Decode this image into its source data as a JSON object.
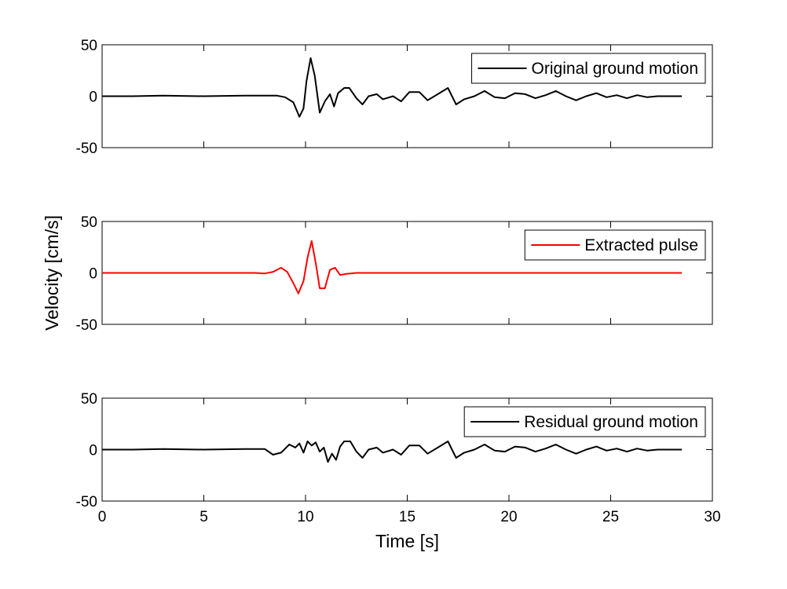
{
  "chart_data": {
    "type": "line",
    "xlabel": "Time [s]",
    "ylabel": "Velocity [cm/s]",
    "xlim": [
      0,
      30
    ],
    "xticks": [
      0,
      5,
      10,
      15,
      20,
      25,
      30
    ],
    "xtick_labels": [
      "0",
      "5",
      "10",
      "15",
      "20",
      "25",
      "30"
    ],
    "ylim": [
      -50,
      50
    ],
    "yticks": [
      -50,
      0,
      50
    ],
    "ytick_labels": [
      "-50",
      "0",
      "50"
    ],
    "grid": false,
    "legend_position": "top-right",
    "panels": [
      {
        "legend": "Original ground motion",
        "color": "#000000",
        "x": [
          0,
          1.5,
          3,
          5,
          7,
          8,
          8.6,
          9.0,
          9.4,
          9.7,
          9.9,
          10.05,
          10.25,
          10.45,
          10.7,
          10.95,
          11.2,
          11.4,
          11.6,
          11.9,
          12.15,
          12.5,
          12.8,
          13.1,
          13.5,
          13.8,
          14.3,
          14.7,
          15.1,
          15.6,
          16.0,
          16.5,
          17.0,
          17.4,
          17.8,
          18.3,
          18.8,
          19.3,
          19.8,
          20.3,
          20.8,
          21.3,
          21.8,
          22.3,
          22.8,
          23.3,
          23.8,
          24.3,
          24.8,
          25.3,
          25.8,
          26.3,
          26.8,
          27.3,
          27.8,
          28.5
        ],
        "y": [
          0,
          0,
          0.5,
          0,
          0.5,
          0.5,
          0.5,
          -1,
          -6,
          -20,
          -12,
          15,
          37,
          20,
          -16,
          -5,
          2,
          -10,
          3,
          8,
          8,
          -2,
          -8,
          0,
          2,
          -3,
          0,
          -5,
          4,
          4,
          -4,
          2,
          8,
          -8,
          -3,
          0,
          5,
          -1,
          -2,
          3,
          2,
          -2,
          1,
          5,
          0,
          -4,
          0,
          3,
          -1,
          1,
          -2,
          1,
          -1,
          0,
          0,
          0
        ]
      },
      {
        "legend": "Extracted pulse",
        "color": "#ff0000",
        "x": [
          0,
          6,
          7.5,
          8.0,
          8.4,
          8.8,
          9.1,
          9.4,
          9.65,
          9.9,
          10.1,
          10.3,
          10.5,
          10.7,
          10.95,
          11.2,
          11.45,
          11.7,
          12.0,
          12.5,
          13.0,
          14,
          20,
          28.5
        ],
        "y": [
          0,
          0,
          0,
          -0.5,
          1,
          5,
          1,
          -10,
          -20,
          -8,
          15,
          31,
          10,
          -15,
          -15,
          3,
          5,
          -2,
          -1,
          0,
          0,
          0,
          0,
          0
        ]
      },
      {
        "legend": "Residual ground motion",
        "color": "#000000",
        "x": [
          0,
          1.5,
          3,
          5,
          7,
          8.0,
          8.4,
          8.8,
          9.2,
          9.5,
          9.7,
          9.9,
          10.1,
          10.3,
          10.5,
          10.7,
          10.9,
          11.1,
          11.3,
          11.5,
          11.7,
          11.9,
          12.2,
          12.5,
          12.8,
          13.1,
          13.5,
          13.8,
          14.3,
          14.7,
          15.1,
          15.6,
          16.0,
          16.5,
          17.0,
          17.4,
          17.8,
          18.3,
          18.8,
          19.3,
          19.8,
          20.3,
          20.8,
          21.3,
          21.8,
          22.3,
          22.8,
          23.3,
          23.8,
          24.3,
          24.8,
          25.3,
          25.8,
          26.3,
          26.8,
          27.3,
          27.8,
          28.5
        ],
        "y": [
          0,
          0,
          0.5,
          0,
          0.5,
          0.5,
          -5,
          -3,
          5,
          2,
          6,
          -3,
          8,
          4,
          7,
          -2,
          2,
          -12,
          -4,
          -10,
          3,
          8,
          8,
          -2,
          -8,
          0,
          2,
          -3,
          0,
          -5,
          4,
          4,
          -4,
          2,
          8,
          -8,
          -3,
          0,
          5,
          -1,
          -2,
          3,
          2,
          -2,
          1,
          5,
          0,
          -4,
          0,
          3,
          -1,
          1,
          -2,
          1,
          -1,
          0,
          0,
          0
        ]
      }
    ]
  }
}
